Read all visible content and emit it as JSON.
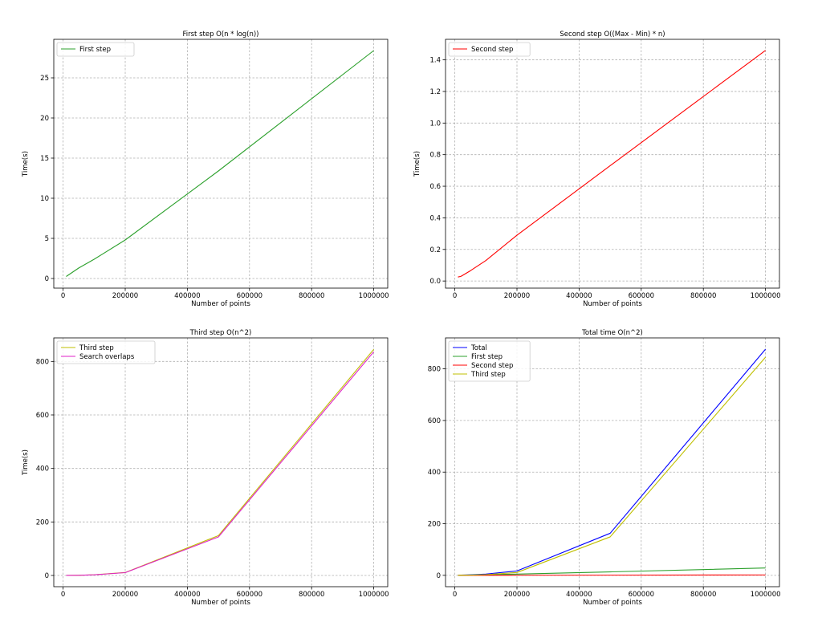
{
  "chart_data": [
    {
      "type": "line",
      "title": "First step O(n * log(n))",
      "xlabel": "Number of points",
      "ylabel": "Time(s)",
      "x": [
        10000,
        50000,
        100000,
        200000,
        500000,
        1000000
      ],
      "series": [
        {
          "name": "First step",
          "color": "#2ca02c",
          "values": [
            0.25,
            1.3,
            2.4,
            4.8,
            13.4,
            28.4
          ]
        }
      ],
      "xlim": [
        -30000,
        1045000
      ],
      "ylim": [
        -1.2,
        29.8
      ],
      "xticks": [
        0,
        200000,
        400000,
        600000,
        800000,
        1000000
      ],
      "yticks": [
        0,
        5,
        10,
        15,
        20,
        25
      ],
      "xtick_labels": [
        "0",
        "200000",
        "400000",
        "600000",
        "800000",
        "1000000"
      ],
      "ytick_labels": [
        "0",
        "5",
        "10",
        "15",
        "20",
        "25"
      ],
      "grid": true,
      "legend": "top-left"
    },
    {
      "type": "line",
      "title": "Second step O((Max - Min) * n)",
      "xlabel": "Number of points",
      "ylabel": "Time(s)",
      "x": [
        10000,
        20000,
        50000,
        100000,
        200000,
        500000,
        1000000
      ],
      "series": [
        {
          "name": "Second step",
          "color": "#ff0000",
          "values": [
            0.025,
            0.03,
            0.065,
            0.13,
            0.29,
            0.73,
            1.46
          ]
        }
      ],
      "xlim": [
        -30000,
        1045000
      ],
      "ylim": [
        -0.045,
        1.53
      ],
      "xticks": [
        0,
        200000,
        400000,
        600000,
        800000,
        1000000
      ],
      "yticks": [
        0.0,
        0.2,
        0.4,
        0.6,
        0.8,
        1.0,
        1.2,
        1.4
      ],
      "xtick_labels": [
        "0",
        "200000",
        "400000",
        "600000",
        "800000",
        "1000000"
      ],
      "ytick_labels": [
        "0.0",
        "0.2",
        "0.4",
        "0.6",
        "0.8",
        "1.0",
        "1.2",
        "1.4"
      ],
      "grid": true,
      "legend": "top-left"
    },
    {
      "type": "line",
      "title": "Third step O(n^2)",
      "xlabel": "Number of points",
      "ylabel": "Time(s)",
      "x": [
        10000,
        50000,
        100000,
        200000,
        500000,
        1000000
      ],
      "series": [
        {
          "name": "Third step",
          "color": "#bfbf00",
          "values": [
            0.1,
            0.7,
            2.6,
            11,
            149,
            845
          ]
        },
        {
          "name": "Search overlaps",
          "color": "#e020c8",
          "values": [
            0.1,
            0.7,
            2.5,
            10.5,
            144,
            836
          ]
        }
      ],
      "xlim": [
        -30000,
        1045000
      ],
      "ylim": [
        -42,
        888
      ],
      "xticks": [
        0,
        200000,
        400000,
        600000,
        800000,
        1000000
      ],
      "yticks": [
        0,
        200,
        400,
        600,
        800
      ],
      "xtick_labels": [
        "0",
        "200000",
        "400000",
        "600000",
        "800000",
        "1000000"
      ],
      "ytick_labels": [
        "0",
        "200",
        "400",
        "600",
        "800"
      ],
      "grid": true,
      "legend": "top-left"
    },
    {
      "type": "line",
      "title": "Total time O(n^2)",
      "xlabel": "Number of points",
      "ylabel": "",
      "x": [
        10000,
        50000,
        100000,
        200000,
        500000,
        1000000
      ],
      "series": [
        {
          "name": "Total",
          "color": "#0000ff",
          "values": [
            0.4,
            2.0,
            5.0,
            17,
            163,
            876
          ]
        },
        {
          "name": "First step",
          "color": "#2ca02c",
          "values": [
            0.25,
            1.3,
            2.4,
            4.8,
            13.4,
            28.4
          ]
        },
        {
          "name": "Second step",
          "color": "#ff0000",
          "values": [
            0.025,
            0.065,
            0.13,
            0.29,
            0.73,
            1.46
          ]
        },
        {
          "name": "Third step",
          "color": "#bfbf00",
          "values": [
            0.1,
            0.7,
            2.6,
            11,
            149,
            845
          ]
        }
      ],
      "xlim": [
        -30000,
        1045000
      ],
      "ylim": [
        -44,
        920
      ],
      "xticks": [
        0,
        200000,
        400000,
        600000,
        800000,
        1000000
      ],
      "yticks": [
        0,
        200,
        400,
        600,
        800
      ],
      "xtick_labels": [
        "0",
        "200000",
        "400000",
        "600000",
        "800000",
        "1000000"
      ],
      "ytick_labels": [
        "0",
        "200",
        "400",
        "600",
        "800"
      ],
      "grid": true,
      "legend": "top-left"
    }
  ]
}
